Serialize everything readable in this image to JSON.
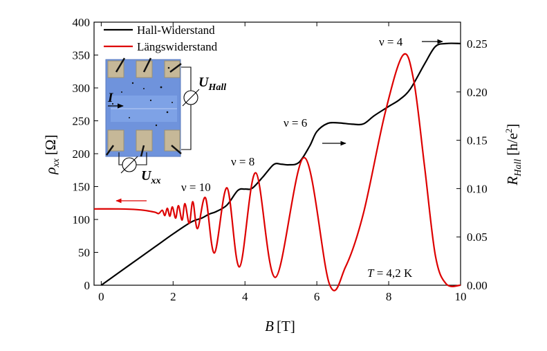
{
  "chart_data": {
    "type": "line",
    "x": {
      "label": "B",
      "unit": "[T]",
      "range": [
        -0.2,
        10
      ],
      "ticks": [
        0,
        2,
        4,
        6,
        8,
        10
      ]
    },
    "y_left": {
      "label": "ρ",
      "label_sub": "xx",
      "unit": "[Ω]",
      "range": [
        0,
        400
      ],
      "ticks": [
        0,
        50,
        100,
        150,
        200,
        250,
        300,
        350,
        400
      ]
    },
    "y_right": {
      "label": "R",
      "label_sub": "Hall",
      "unit": "[h/e",
      "unit_sup": "2",
      "unit_close": "]",
      "range": [
        0,
        0.2722
      ],
      "ticks": [
        0.0,
        0.05,
        0.1,
        0.15,
        0.2,
        0.25
      ],
      "tick_labels": [
        "0.00",
        "0.05",
        "0.10",
        "0.15",
        "0.20",
        "0.25"
      ]
    },
    "series": [
      {
        "name": "Hall-Widerstand",
        "color": "#000000",
        "axis": "right",
        "points": [
          [
            0.0,
            0.0
          ],
          [
            0.5,
            0.0133
          ],
          [
            1.0,
            0.0266
          ],
          [
            1.5,
            0.0398
          ],
          [
            2.0,
            0.0531
          ],
          [
            2.5,
            0.0653
          ],
          [
            2.8,
            0.0695
          ],
          [
            3.0,
            0.0735
          ],
          [
            3.2,
            0.0762
          ],
          [
            3.5,
            0.083
          ],
          [
            3.8,
            0.098
          ],
          [
            4.0,
            0.0995
          ],
          [
            4.2,
            0.1003
          ],
          [
            4.5,
            0.1121
          ],
          [
            4.8,
            0.1249
          ],
          [
            5.0,
            0.1253
          ],
          [
            5.2,
            0.1246
          ],
          [
            5.5,
            0.127
          ],
          [
            5.8,
            0.144
          ],
          [
            6.0,
            0.159
          ],
          [
            6.3,
            0.1674
          ],
          [
            6.6,
            0.168
          ],
          [
            7.0,
            0.1666
          ],
          [
            7.3,
            0.167
          ],
          [
            7.6,
            0.1755
          ],
          [
            8.0,
            0.185
          ],
          [
            8.3,
            0.192
          ],
          [
            8.6,
            0.203
          ],
          [
            9.0,
            0.229
          ],
          [
            9.3,
            0.247
          ],
          [
            9.6,
            0.2501
          ],
          [
            10.0,
            0.2501
          ]
        ]
      },
      {
        "name": "Längswiderstand",
        "color": "#dd0000",
        "axis": "left",
        "points": [
          [
            -0.2,
            116
          ],
          [
            0.5,
            116
          ],
          [
            1.0,
            115
          ],
          [
            1.3,
            113
          ],
          [
            1.5,
            111
          ],
          [
            1.6,
            109
          ],
          [
            1.7,
            114
          ],
          [
            1.77,
            106
          ],
          [
            1.84,
            117
          ],
          [
            1.91,
            105
          ],
          [
            1.98,
            119
          ],
          [
            2.07,
            102
          ],
          [
            2.15,
            121
          ],
          [
            2.25,
            99
          ],
          [
            2.33,
            124
          ],
          [
            2.45,
            94
          ],
          [
            2.55,
            127
          ],
          [
            2.68,
            86
          ],
          [
            2.9,
            133
          ],
          [
            3.15,
            49
          ],
          [
            3.5,
            148
          ],
          [
            3.85,
            28
          ],
          [
            4.3,
            171
          ],
          [
            4.85,
            12
          ],
          [
            5.65,
            194
          ],
          [
            6.35,
            2
          ],
          [
            6.8,
            28
          ],
          [
            7.3,
            110
          ],
          [
            7.9,
            262
          ],
          [
            8.4,
            350
          ],
          [
            8.7,
            310
          ],
          [
            9.0,
            180
          ],
          [
            9.3,
            45
          ],
          [
            9.6,
            2
          ],
          [
            10.0,
            0
          ]
        ]
      }
    ],
    "annotations": [
      {
        "id": "nu-10",
        "text": "ν = 10"
      },
      {
        "id": "nu-8",
        "text": "ν = 8"
      },
      {
        "id": "nu-6",
        "text": "ν = 6"
      },
      {
        "id": "nu-4",
        "text": "ν = 4"
      },
      {
        "id": "temperature",
        "text_italic": "T",
        "text": " = 4,2 K"
      }
    ],
    "inset": {
      "current_label": "I",
      "u_hall_label": "U",
      "u_hall_sub": "Hall",
      "u_xx_label": "U",
      "u_xx_sub": "xx"
    },
    "legend_placement": "top-left",
    "grid": false
  }
}
